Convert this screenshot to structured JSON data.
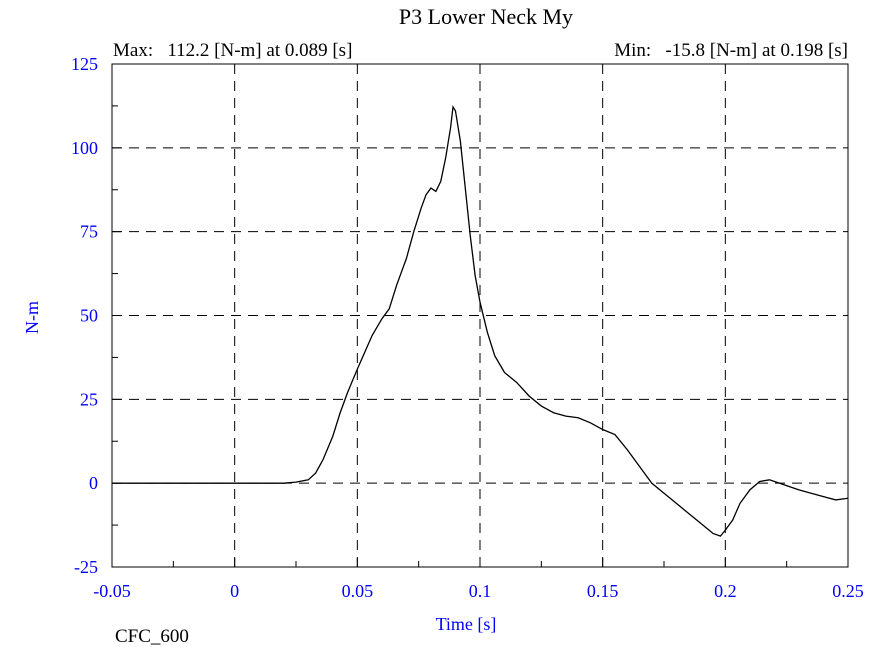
{
  "chart_data": {
    "type": "line",
    "title": "P3 Lower Neck My",
    "max_text": "Max:   112.2 [N-m] at 0.089 [s]",
    "min_text": "Min:   -15.8 [N-m] at 0.198 [s]",
    "xlabel": "Time [s]",
    "ylabel": "N-m",
    "footer": "CFC_600",
    "xlim": [
      -0.05,
      0.25
    ],
    "ylim": [
      -25,
      125
    ],
    "xticks": [
      -0.05,
      0,
      0.05,
      0.1,
      0.15,
      0.2,
      0.25
    ],
    "xtick_labels": [
      "-0.05",
      "0",
      "0.05",
      "0.1",
      "0.15",
      "0.2",
      "0.25"
    ],
    "yticks": [
      -25,
      0,
      25,
      50,
      75,
      100,
      125
    ],
    "ytick_labels": [
      "-25",
      "0",
      "25",
      "50",
      "75",
      "100",
      "125"
    ],
    "grid": true,
    "grid_style": "dashed",
    "colors": {
      "line": "#000000",
      "ticks": "#0000ff",
      "grid": "#000000"
    },
    "series": [
      {
        "x": [
          -0.05,
          -0.03,
          -0.01,
          0.0,
          0.01,
          0.02,
          0.025,
          0.03,
          0.033,
          0.036,
          0.04,
          0.043,
          0.046,
          0.05,
          0.053,
          0.056,
          0.06,
          0.063,
          0.066,
          0.07,
          0.073,
          0.076,
          0.078,
          0.08,
          0.082,
          0.084,
          0.086,
          0.088,
          0.089,
          0.09,
          0.092,
          0.094,
          0.096,
          0.098,
          0.1,
          0.103,
          0.106,
          0.11,
          0.115,
          0.12,
          0.125,
          0.13,
          0.135,
          0.14,
          0.145,
          0.15,
          0.155,
          0.16,
          0.165,
          0.17,
          0.175,
          0.18,
          0.185,
          0.19,
          0.195,
          0.198,
          0.2,
          0.203,
          0.206,
          0.21,
          0.214,
          0.218,
          0.222,
          0.226,
          0.23,
          0.235,
          0.24,
          0.245,
          0.25
        ],
        "y": [
          0,
          0,
          0,
          0,
          0,
          0,
          0.3,
          1,
          3,
          7,
          14,
          21,
          27,
          34,
          39,
          44,
          49,
          52,
          59,
          67,
          75,
          82,
          86,
          88,
          87,
          90,
          97,
          106,
          112.2,
          111,
          102,
          88,
          74,
          62,
          54,
          45,
          38,
          33,
          30,
          26,
          23,
          21,
          20,
          19.5,
          18,
          16,
          14.5,
          10,
          5,
          0,
          -3,
          -6,
          -9,
          -12,
          -15,
          -15.8,
          -14,
          -11,
          -6,
          -2,
          0.5,
          1,
          0,
          -1,
          -2,
          -3,
          -4,
          -5,
          -4.5
        ]
      }
    ]
  }
}
